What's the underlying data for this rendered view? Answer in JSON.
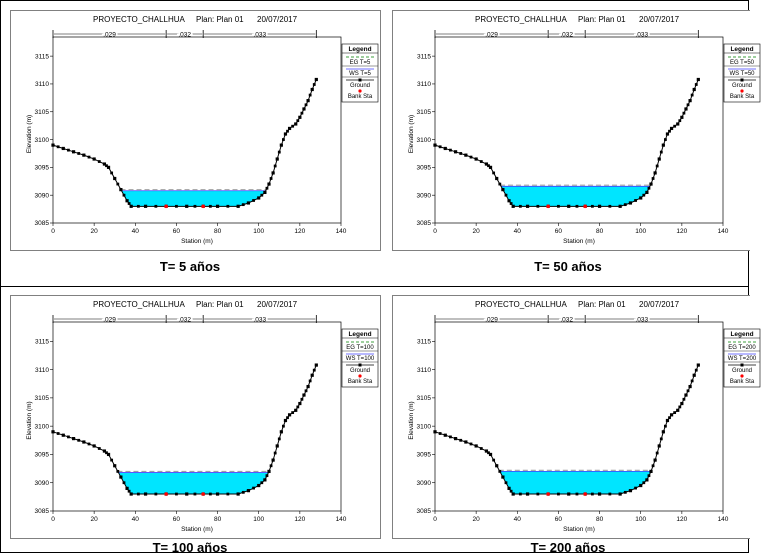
{
  "colors": {
    "water": "#00e5ff",
    "ground": "#000000",
    "eg": "#a0a0a0",
    "ws": "#4040ff",
    "bank": "#ff0000",
    "egLegend": "#008000"
  },
  "chart_data": [
    {
      "type": "area",
      "title": "PROYECTO_CHALLHUA",
      "plan": "Plan: Plan 01",
      "date": "20/07/2017",
      "caption": "T= 5 años",
      "xlabel": "Station (m)",
      "ylabel": "Elevation (m)",
      "xlim": [
        0,
        140
      ],
      "ylim": [
        3085,
        3117
      ],
      "xticks": [
        "0",
        "20",
        "40",
        "60",
        "80",
        "100",
        "120",
        "140"
      ],
      "yticks": [
        "3085",
        "3090",
        "3095",
        "3100",
        "3105",
        "3110",
        "3115"
      ],
      "n_values": [
        ".029",
        ".032",
        ".033"
      ],
      "n_breaks": [
        0,
        55,
        73,
        128
      ],
      "ground": [
        [
          0,
          3099
        ],
        [
          5,
          3098.4
        ],
        [
          10,
          3097.8
        ],
        [
          15,
          3097.2
        ],
        [
          20,
          3096.5
        ],
        [
          25,
          3095.6
        ],
        [
          27,
          3095
        ],
        [
          30,
          3093
        ],
        [
          33,
          3091
        ],
        [
          36,
          3089
        ],
        [
          38,
          3088
        ],
        [
          45,
          3088
        ],
        [
          55,
          3088
        ],
        [
          65,
          3088
        ],
        [
          73,
          3088
        ],
        [
          80,
          3088
        ],
        [
          90,
          3088
        ],
        [
          95,
          3088.6
        ],
        [
          100,
          3089.5
        ],
        [
          103,
          3090.5
        ],
        [
          105,
          3092
        ],
        [
          107,
          3094
        ],
        [
          109,
          3096.5
        ],
        [
          111,
          3099
        ],
        [
          113,
          3101
        ],
        [
          115,
          3102
        ],
        [
          118,
          3102.8
        ],
        [
          120,
          3104
        ],
        [
          122,
          3105.5
        ],
        [
          124,
          3107
        ],
        [
          126,
          3109
        ],
        [
          128,
          3110.8
        ]
      ],
      "bank_sta": [
        [
          55,
          3088
        ],
        [
          73,
          3088
        ]
      ],
      "ws_elev": 3090.8,
      "eg_elev": 3091.0,
      "legend": {
        "title": "Legend",
        "items": [
          "EG T=5",
          "WS T=5",
          "Ground",
          "Bank Sta"
        ]
      }
    },
    {
      "type": "area",
      "title": "PROYECTO_CHALLHUA",
      "plan": "Plan: Plan 01",
      "date": "20/07/2017",
      "caption": "T= 50 años",
      "xlabel": "Station (m)",
      "ylabel": "Elevation (m)",
      "xlim": [
        0,
        140
      ],
      "ylim": [
        3085,
        3117
      ],
      "xticks": [
        "0",
        "20",
        "40",
        "60",
        "80",
        "100",
        "120",
        "140"
      ],
      "yticks": [
        "3085",
        "3090",
        "3095",
        "3100",
        "3105",
        "3110",
        "3115"
      ],
      "n_values": [
        ".029",
        ".032",
        ".033"
      ],
      "n_breaks": [
        0,
        55,
        73,
        128
      ],
      "ground": [
        [
          0,
          3099
        ],
        [
          5,
          3098.4
        ],
        [
          10,
          3097.8
        ],
        [
          15,
          3097.2
        ],
        [
          20,
          3096.5
        ],
        [
          25,
          3095.6
        ],
        [
          27,
          3095
        ],
        [
          30,
          3093
        ],
        [
          33,
          3091
        ],
        [
          36,
          3089
        ],
        [
          38,
          3088
        ],
        [
          45,
          3088
        ],
        [
          55,
          3088
        ],
        [
          65,
          3088
        ],
        [
          73,
          3088
        ],
        [
          80,
          3088
        ],
        [
          90,
          3088
        ],
        [
          95,
          3088.6
        ],
        [
          100,
          3089.5
        ],
        [
          103,
          3090.5
        ],
        [
          105,
          3092
        ],
        [
          107,
          3094
        ],
        [
          109,
          3096.5
        ],
        [
          111,
          3099
        ],
        [
          113,
          3101
        ],
        [
          115,
          3102
        ],
        [
          118,
          3102.8
        ],
        [
          120,
          3104
        ],
        [
          122,
          3105.5
        ],
        [
          124,
          3107
        ],
        [
          126,
          3109
        ],
        [
          128,
          3110.8
        ]
      ],
      "bank_sta": [
        [
          55,
          3088
        ],
        [
          73,
          3088
        ]
      ],
      "ws_elev": 3091.6,
      "eg_elev": 3091.8,
      "legend": {
        "title": "Legend",
        "items": [
          "EG T=50",
          "WS T=50",
          "Ground",
          "Bank Sta"
        ]
      }
    },
    {
      "type": "area",
      "title": "PROYECTO_CHALLHUA",
      "plan": "Plan: Plan 01",
      "date": "20/07/2017",
      "caption": "T= 100 años",
      "xlabel": "Station (m)",
      "ylabel": "Elevation (m)",
      "xlim": [
        0,
        140
      ],
      "ylim": [
        3085,
        3117
      ],
      "xticks": [
        "0",
        "20",
        "40",
        "60",
        "80",
        "100",
        "120",
        "140"
      ],
      "yticks": [
        "3085",
        "3090",
        "3095",
        "3100",
        "3105",
        "3110",
        "3115"
      ],
      "n_values": [
        ".029",
        ".032",
        ".033"
      ],
      "n_breaks": [
        0,
        55,
        73,
        128
      ],
      "ground": [
        [
          0,
          3099
        ],
        [
          5,
          3098.4
        ],
        [
          10,
          3097.8
        ],
        [
          15,
          3097.2
        ],
        [
          20,
          3096.5
        ],
        [
          25,
          3095.6
        ],
        [
          27,
          3095
        ],
        [
          30,
          3093
        ],
        [
          33,
          3091
        ],
        [
          36,
          3089
        ],
        [
          38,
          3088
        ],
        [
          45,
          3088
        ],
        [
          55,
          3088
        ],
        [
          65,
          3088
        ],
        [
          73,
          3088
        ],
        [
          80,
          3088
        ],
        [
          90,
          3088
        ],
        [
          95,
          3088.6
        ],
        [
          100,
          3089.5
        ],
        [
          103,
          3090.5
        ],
        [
          105,
          3092
        ],
        [
          107,
          3094
        ],
        [
          109,
          3096.5
        ],
        [
          111,
          3099
        ],
        [
          113,
          3101
        ],
        [
          115,
          3102
        ],
        [
          118,
          3102.8
        ],
        [
          120,
          3104
        ],
        [
          122,
          3105.5
        ],
        [
          124,
          3107
        ],
        [
          126,
          3109
        ],
        [
          128,
          3110.8
        ]
      ],
      "bank_sta": [
        [
          55,
          3088
        ],
        [
          73,
          3088
        ]
      ],
      "ws_elev": 3091.8,
      "eg_elev": 3092.0,
      "legend": {
        "title": "Legend",
        "items": [
          "EG T=100",
          "WS T=100",
          "Ground",
          "Bank Sta"
        ]
      }
    },
    {
      "type": "area",
      "title": "PROYECTO_CHALLHUA",
      "plan": "Plan: Plan 01",
      "date": "20/07/2017",
      "caption": "T= 200 años",
      "xlabel": "Station (m)",
      "ylabel": "Elevation (m)",
      "xlim": [
        0,
        140
      ],
      "ylim": [
        3085,
        3117
      ],
      "xticks": [
        "0",
        "20",
        "40",
        "60",
        "80",
        "100",
        "120",
        "140"
      ],
      "yticks": [
        "3085",
        "3090",
        "3095",
        "3100",
        "3105",
        "3110",
        "3115"
      ],
      "n_values": [
        ".029",
        ".032",
        ".033"
      ],
      "n_breaks": [
        0,
        55,
        73,
        128
      ],
      "ground": [
        [
          0,
          3099
        ],
        [
          5,
          3098.4
        ],
        [
          10,
          3097.8
        ],
        [
          15,
          3097.2
        ],
        [
          20,
          3096.5
        ],
        [
          25,
          3095.6
        ],
        [
          27,
          3095
        ],
        [
          30,
          3093
        ],
        [
          33,
          3091
        ],
        [
          36,
          3089
        ],
        [
          38,
          3088
        ],
        [
          45,
          3088
        ],
        [
          55,
          3088
        ],
        [
          65,
          3088
        ],
        [
          73,
          3088
        ],
        [
          80,
          3088
        ],
        [
          90,
          3088
        ],
        [
          95,
          3088.6
        ],
        [
          100,
          3089.5
        ],
        [
          103,
          3090.5
        ],
        [
          105,
          3092
        ],
        [
          107,
          3094
        ],
        [
          109,
          3096.5
        ],
        [
          111,
          3099
        ],
        [
          113,
          3101
        ],
        [
          115,
          3102
        ],
        [
          118,
          3102.8
        ],
        [
          120,
          3104
        ],
        [
          122,
          3105.5
        ],
        [
          124,
          3107
        ],
        [
          126,
          3109
        ],
        [
          128,
          3110.8
        ]
      ],
      "bank_sta": [
        [
          55,
          3088
        ],
        [
          73,
          3088
        ]
      ],
      "ws_elev": 3092.0,
      "eg_elev": 3092.2,
      "legend": {
        "title": "Legend",
        "items": [
          "EG T=200",
          "WS T=200",
          "Ground",
          "Bank Sta"
        ]
      }
    }
  ]
}
